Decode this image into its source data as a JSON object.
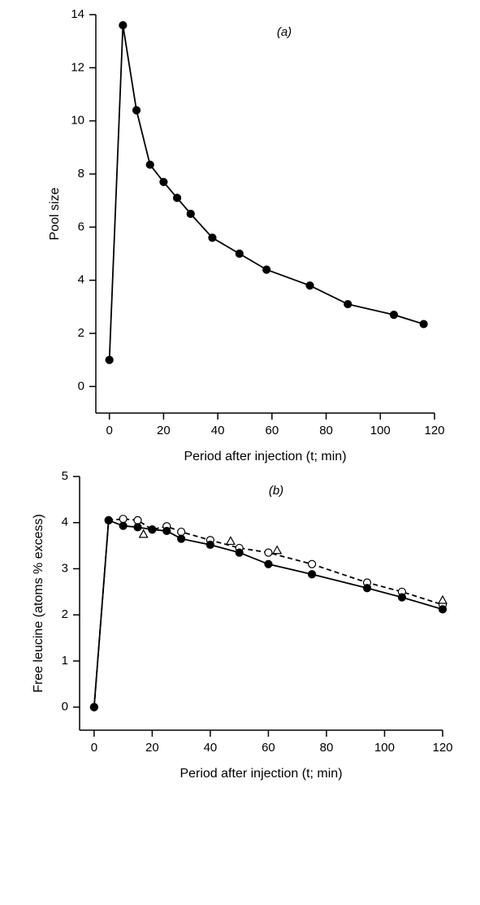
{
  "chart_data": [
    {
      "type": "line",
      "annotation": "(a)",
      "xlabel": "Period after injection (t; min)",
      "ylabel": "Pool size",
      "xlim": [
        -5,
        120
      ],
      "xticks": [
        0,
        20,
        40,
        60,
        80,
        100,
        120
      ],
      "ylim": [
        -1,
        14
      ],
      "yticks": [
        0,
        2,
        4,
        6,
        8,
        10,
        12,
        14
      ],
      "series": [
        {
          "color": "#000000",
          "marker": "filled-circle",
          "line": "solid",
          "x": [
            0,
            5,
            10,
            15,
            20,
            25,
            30,
            38,
            48,
            58,
            74,
            88,
            105,
            116
          ],
          "values": [
            1.0,
            13.6,
            10.4,
            8.35,
            7.7,
            7.1,
            6.5,
            5.6,
            5.0,
            4.4,
            3.8,
            3.1,
            2.7,
            2.35
          ]
        }
      ]
    },
    {
      "type": "line",
      "annotation": "(b)",
      "xlabel": "Period after injection (t; min)",
      "ylabel": "Free leucine (atoms % excess)",
      "xlim": [
        -5,
        120
      ],
      "xticks": [
        0,
        20,
        40,
        60,
        80,
        100,
        120
      ],
      "ylim": [
        -0.5,
        5
      ],
      "yticks": [
        0,
        1,
        2,
        3,
        4,
        5
      ],
      "series": [
        {
          "color": "#000000",
          "marker": "open-circle",
          "line": "dashed",
          "x": [
            0,
            5,
            10,
            15,
            20,
            25,
            30,
            40,
            50,
            60,
            75,
            94,
            106,
            120
          ],
          "values": [
            0,
            4.05,
            4.08,
            4.05,
            3.85,
            3.92,
            3.8,
            3.62,
            3.45,
            3.35,
            3.1,
            2.7,
            2.5,
            2.22
          ]
        },
        {
          "color": "#000000",
          "marker": "filled-circle",
          "line": "solid",
          "x": [
            0,
            5,
            10,
            15,
            20,
            25,
            30,
            40,
            50,
            60,
            75,
            94,
            106,
            120
          ],
          "values": [
            0,
            4.05,
            3.93,
            3.9,
            3.85,
            3.82,
            3.65,
            3.52,
            3.35,
            3.1,
            2.88,
            2.58,
            2.38,
            2.12
          ]
        },
        {
          "color": "#000000",
          "marker": "open-triangle",
          "line": "none",
          "x": [
            17,
            47,
            63,
            120
          ],
          "values": [
            3.75,
            3.6,
            3.4,
            2.32
          ]
        }
      ]
    }
  ]
}
